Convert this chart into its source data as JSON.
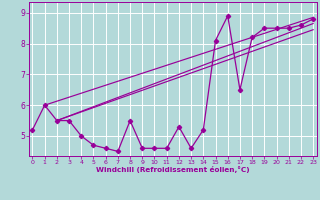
{
  "x": [
    0,
    1,
    2,
    3,
    4,
    5,
    6,
    7,
    8,
    9,
    10,
    11,
    12,
    13,
    14,
    15,
    16,
    17,
    18,
    19,
    20,
    21,
    22,
    23
  ],
  "y_main": [
    5.2,
    6.0,
    5.5,
    5.5,
    5.0,
    4.7,
    4.6,
    4.5,
    5.5,
    4.6,
    4.6,
    4.6,
    5.3,
    4.6,
    5.2,
    8.1,
    8.9,
    6.5,
    8.2,
    8.5,
    8.5,
    8.5,
    8.6,
    8.8
  ],
  "trend_lines": [
    {
      "x0": 1,
      "y0": 6.0,
      "x1": 23,
      "y1": 8.85
    },
    {
      "x0": 2,
      "y0": 5.5,
      "x1": 23,
      "y1": 8.65
    },
    {
      "x0": 2,
      "y0": 5.5,
      "x1": 23,
      "y1": 8.45
    }
  ],
  "line_color": "#990099",
  "bg_color": "#b3d9d9",
  "grid_color": "#d0eaea",
  "xlabel": "Windchill (Refroidissement éolien,°C)",
  "yticks": [
    5,
    6,
    7,
    8,
    9
  ],
  "xticks": [
    0,
    1,
    2,
    3,
    4,
    5,
    6,
    7,
    8,
    9,
    10,
    11,
    12,
    13,
    14,
    15,
    16,
    17,
    18,
    19,
    20,
    21,
    22,
    23
  ],
  "ylim": [
    4.35,
    9.35
  ],
  "xlim": [
    -0.3,
    23.3
  ]
}
